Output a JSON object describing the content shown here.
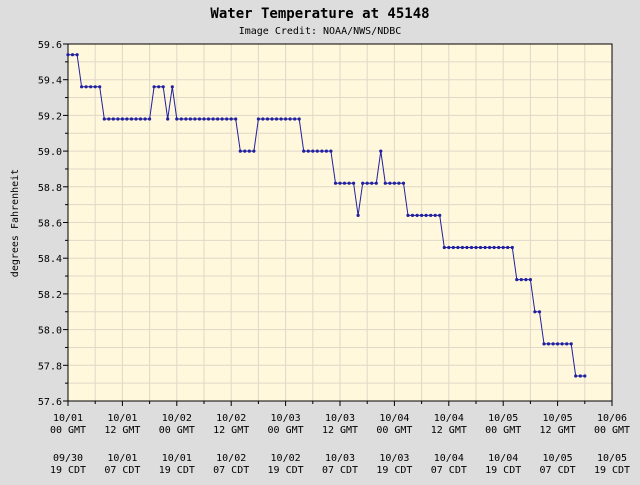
{
  "chart_data": {
    "type": "line",
    "title": "Water Temperature at 45148",
    "subtitle": "Image Credit: NOAA/NWS/NDBC",
    "ylabel": "degrees Fahrenheit",
    "xlabel": "",
    "ylim": [
      57.6,
      59.6
    ],
    "yticks": [
      "59.6",
      "59.4",
      "59.2",
      "59.0",
      "58.8",
      "58.6",
      "58.4",
      "58.2",
      "58.0",
      "57.8",
      "57.6"
    ],
    "x_unit": "hours since 10/01 00 GMT",
    "xlim": [
      0,
      120
    ],
    "xticks_gmt": [
      [
        "10/01",
        "00 GMT"
      ],
      [
        "10/01",
        "12 GMT"
      ],
      [
        "10/02",
        "00 GMT"
      ],
      [
        "10/02",
        "12 GMT"
      ],
      [
        "10/03",
        "00 GMT"
      ],
      [
        "10/03",
        "12 GMT"
      ],
      [
        "10/04",
        "00 GMT"
      ],
      [
        "10/04",
        "12 GMT"
      ],
      [
        "10/05",
        "00 GMT"
      ],
      [
        "10/05",
        "12 GMT"
      ],
      [
        "10/06",
        "00 GMT"
      ]
    ],
    "xticks_local": [
      [
        "09/30",
        "19 CDT"
      ],
      [
        "10/01",
        "07 CDT"
      ],
      [
        "10/01",
        "19 CDT"
      ],
      [
        "10/02",
        "07 CDT"
      ],
      [
        "10/02",
        "19 CDT"
      ],
      [
        "10/03",
        "07 CDT"
      ],
      [
        "10/03",
        "19 CDT"
      ],
      [
        "10/04",
        "07 CDT"
      ],
      [
        "10/04",
        "19 CDT"
      ],
      [
        "10/05",
        "07 CDT"
      ],
      [
        "10/05",
        "19 CDT"
      ]
    ],
    "grid": true,
    "colors": {
      "plot_background": "#fff8dc",
      "grid": "#e0d8c8",
      "line": "#2020a0",
      "page_background": "#dddddd"
    },
    "series": [
      {
        "x": [
          0,
          1,
          2,
          3,
          4,
          5,
          6,
          7,
          8,
          9,
          10,
          11,
          12,
          13,
          14,
          15,
          16,
          17,
          18,
          19,
          20,
          21,
          22,
          23,
          24,
          25,
          26,
          27,
          28,
          29,
          30,
          31,
          32,
          33,
          34,
          35,
          36,
          37,
          38,
          39,
          40,
          41,
          42,
          43,
          44,
          45,
          46,
          47,
          48,
          49,
          50,
          51,
          52,
          53,
          54,
          55,
          56,
          57,
          58,
          59,
          60,
          61,
          62,
          63,
          64,
          65,
          66,
          67,
          68,
          69,
          70,
          71,
          72,
          73,
          74,
          75,
          76,
          77,
          78,
          79,
          80,
          81,
          82,
          83,
          84,
          85,
          86,
          87,
          88,
          89,
          90,
          91,
          92,
          93,
          94,
          95,
          96,
          97,
          98,
          99,
          100,
          101,
          102,
          103,
          104,
          105,
          106,
          107,
          108,
          109,
          110,
          111,
          112,
          113,
          114
        ],
        "values": [
          59.54,
          59.54,
          59.54,
          59.36,
          59.36,
          59.36,
          59.36,
          59.36,
          59.18,
          59.18,
          59.18,
          59.18,
          59.18,
          59.18,
          59.18,
          59.18,
          59.18,
          59.18,
          59.18,
          59.36,
          59.36,
          59.36,
          59.18,
          59.36,
          59.18,
          59.18,
          59.18,
          59.18,
          59.18,
          59.18,
          59.18,
          59.18,
          59.18,
          59.18,
          59.18,
          59.18,
          59.18,
          59.18,
          59.0,
          59.0,
          59.0,
          59.0,
          59.18,
          59.18,
          59.18,
          59.18,
          59.18,
          59.18,
          59.18,
          59.18,
          59.18,
          59.18,
          59.0,
          59.0,
          59.0,
          59.0,
          59.0,
          59.0,
          59.0,
          58.82,
          58.82,
          58.82,
          58.82,
          58.82,
          58.64,
          58.82,
          58.82,
          58.82,
          58.82,
          59.0,
          58.82,
          58.82,
          58.82,
          58.82,
          58.82,
          58.64,
          58.64,
          58.64,
          58.64,
          58.64,
          58.64,
          58.64,
          58.64,
          58.46,
          58.46,
          58.46,
          58.46,
          58.46,
          58.46,
          58.46,
          58.46,
          58.46,
          58.46,
          58.46,
          58.46,
          58.46,
          58.46,
          58.46,
          58.46,
          58.28,
          58.28,
          58.28,
          58.28,
          58.1,
          58.1,
          57.92,
          57.92,
          57.92,
          57.92,
          57.92,
          57.92,
          57.92,
          57.74,
          57.74,
          57.74
        ]
      }
    ]
  }
}
